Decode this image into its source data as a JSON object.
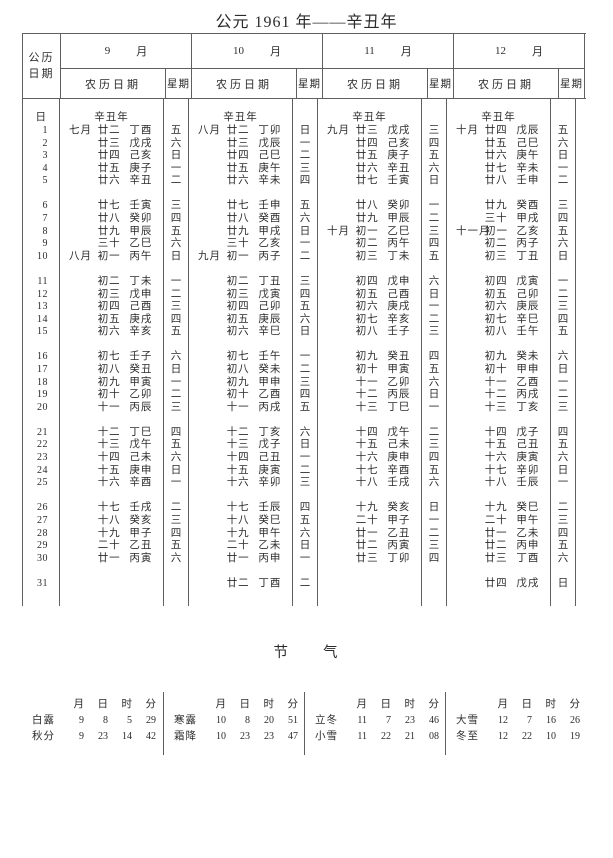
{
  "page_title": "公元 1961 年——辛丑年",
  "colors": {
    "background": "#ffffff",
    "text": "#2b2b2b",
    "line": "#5f5f5f"
  },
  "calendar": {
    "corner_line1": "公历",
    "corner_line2": "日期",
    "month_word": "月",
    "lunar_header": "农历日期",
    "week_header": "星期",
    "day_header": "日",
    "year_label": "辛丑年",
    "day_numbers": [
      1,
      2,
      3,
      4,
      5,
      6,
      7,
      8,
      9,
      10,
      11,
      12,
      13,
      14,
      15,
      16,
      17,
      18,
      19,
      20,
      21,
      22,
      23,
      24,
      25,
      26,
      27,
      28,
      29,
      30,
      31
    ],
    "months": [
      {
        "number": "9",
        "days": [
          {
            "m": "七月",
            "d": "廿二",
            "g": "丁酉",
            "w": "五"
          },
          {
            "m": "",
            "d": "廿三",
            "g": "戊戌",
            "w": "六"
          },
          {
            "m": "",
            "d": "廿四",
            "g": "己亥",
            "w": "日"
          },
          {
            "m": "",
            "d": "廿五",
            "g": "庚子",
            "w": "一"
          },
          {
            "m": "",
            "d": "廿六",
            "g": "辛丑",
            "w": "二"
          },
          {
            "m": "",
            "d": "廿七",
            "g": "壬寅",
            "w": "三"
          },
          {
            "m": "",
            "d": "廿八",
            "g": "癸卯",
            "w": "四"
          },
          {
            "m": "",
            "d": "廿九",
            "g": "甲辰",
            "w": "五"
          },
          {
            "m": "",
            "d": "三十",
            "g": "乙巳",
            "w": "六"
          },
          {
            "m": "八月",
            "d": "初一",
            "g": "丙午",
            "w": "日"
          },
          {
            "m": "",
            "d": "初二",
            "g": "丁未",
            "w": "一"
          },
          {
            "m": "",
            "d": "初三",
            "g": "戊申",
            "w": "二"
          },
          {
            "m": "",
            "d": "初四",
            "g": "己酉",
            "w": "三"
          },
          {
            "m": "",
            "d": "初五",
            "g": "庚戌",
            "w": "四"
          },
          {
            "m": "",
            "d": "初六",
            "g": "辛亥",
            "w": "五"
          },
          {
            "m": "",
            "d": "初七",
            "g": "壬子",
            "w": "六"
          },
          {
            "m": "",
            "d": "初八",
            "g": "癸丑",
            "w": "日"
          },
          {
            "m": "",
            "d": "初九",
            "g": "甲寅",
            "w": "一"
          },
          {
            "m": "",
            "d": "初十",
            "g": "乙卯",
            "w": "二"
          },
          {
            "m": "",
            "d": "十一",
            "g": "丙辰",
            "w": "三"
          },
          {
            "m": "",
            "d": "十二",
            "g": "丁巳",
            "w": "四"
          },
          {
            "m": "",
            "d": "十三",
            "g": "戊午",
            "w": "五"
          },
          {
            "m": "",
            "d": "十四",
            "g": "己未",
            "w": "六"
          },
          {
            "m": "",
            "d": "十五",
            "g": "庚申",
            "w": "日"
          },
          {
            "m": "",
            "d": "十六",
            "g": "辛酉",
            "w": "一"
          },
          {
            "m": "",
            "d": "十七",
            "g": "壬戌",
            "w": "二"
          },
          {
            "m": "",
            "d": "十八",
            "g": "癸亥",
            "w": "三"
          },
          {
            "m": "",
            "d": "十九",
            "g": "甲子",
            "w": "四"
          },
          {
            "m": "",
            "d": "二十",
            "g": "乙丑",
            "w": "五"
          },
          {
            "m": "",
            "d": "廿一",
            "g": "丙寅",
            "w": "六"
          },
          null
        ]
      },
      {
        "number": "10",
        "days": [
          {
            "m": "八月",
            "d": "廿二",
            "g": "丁卯",
            "w": "日"
          },
          {
            "m": "",
            "d": "廿三",
            "g": "戊辰",
            "w": "一"
          },
          {
            "m": "",
            "d": "廿四",
            "g": "己巳",
            "w": "二"
          },
          {
            "m": "",
            "d": "廿五",
            "g": "庚午",
            "w": "三"
          },
          {
            "m": "",
            "d": "廿六",
            "g": "辛未",
            "w": "四"
          },
          {
            "m": "",
            "d": "廿七",
            "g": "壬申",
            "w": "五"
          },
          {
            "m": "",
            "d": "廿八",
            "g": "癸酉",
            "w": "六"
          },
          {
            "m": "",
            "d": "廿九",
            "g": "甲戌",
            "w": "日"
          },
          {
            "m": "",
            "d": "三十",
            "g": "乙亥",
            "w": "一"
          },
          {
            "m": "九月",
            "d": "初一",
            "g": "丙子",
            "w": "二"
          },
          {
            "m": "",
            "d": "初二",
            "g": "丁丑",
            "w": "三"
          },
          {
            "m": "",
            "d": "初三",
            "g": "戊寅",
            "w": "四"
          },
          {
            "m": "",
            "d": "初四",
            "g": "己卯",
            "w": "五"
          },
          {
            "m": "",
            "d": "初五",
            "g": "庚辰",
            "w": "六"
          },
          {
            "m": "",
            "d": "初六",
            "g": "辛巳",
            "w": "日"
          },
          {
            "m": "",
            "d": "初七",
            "g": "壬午",
            "w": "一"
          },
          {
            "m": "",
            "d": "初八",
            "g": "癸未",
            "w": "二"
          },
          {
            "m": "",
            "d": "初九",
            "g": "甲申",
            "w": "三"
          },
          {
            "m": "",
            "d": "初十",
            "g": "乙酉",
            "w": "四"
          },
          {
            "m": "",
            "d": "十一",
            "g": "丙戌",
            "w": "五"
          },
          {
            "m": "",
            "d": "十二",
            "g": "丁亥",
            "w": "六"
          },
          {
            "m": "",
            "d": "十三",
            "g": "戊子",
            "w": "日"
          },
          {
            "m": "",
            "d": "十四",
            "g": "己丑",
            "w": "一"
          },
          {
            "m": "",
            "d": "十五",
            "g": "庚寅",
            "w": "二"
          },
          {
            "m": "",
            "d": "十六",
            "g": "辛卯",
            "w": "三"
          },
          {
            "m": "",
            "d": "十七",
            "g": "壬辰",
            "w": "四"
          },
          {
            "m": "",
            "d": "十八",
            "g": "癸巳",
            "w": "五"
          },
          {
            "m": "",
            "d": "十九",
            "g": "甲午",
            "w": "六"
          },
          {
            "m": "",
            "d": "二十",
            "g": "乙未",
            "w": "日"
          },
          {
            "m": "",
            "d": "廿一",
            "g": "丙申",
            "w": "一"
          },
          {
            "m": "",
            "d": "廿二",
            "g": "丁酉",
            "w": "二"
          }
        ]
      },
      {
        "number": "11",
        "days": [
          {
            "m": "九月",
            "d": "廿三",
            "g": "戊戌",
            "w": "三"
          },
          {
            "m": "",
            "d": "廿四",
            "g": "己亥",
            "w": "四"
          },
          {
            "m": "",
            "d": "廿五",
            "g": "庚子",
            "w": "五"
          },
          {
            "m": "",
            "d": "廿六",
            "g": "辛丑",
            "w": "六"
          },
          {
            "m": "",
            "d": "廿七",
            "g": "壬寅",
            "w": "日"
          },
          {
            "m": "",
            "d": "廿八",
            "g": "癸卯",
            "w": "一"
          },
          {
            "m": "",
            "d": "廿九",
            "g": "甲辰",
            "w": "二"
          },
          {
            "m": "十月",
            "d": "初一",
            "g": "乙巳",
            "w": "三"
          },
          {
            "m": "",
            "d": "初二",
            "g": "丙午",
            "w": "四"
          },
          {
            "m": "",
            "d": "初三",
            "g": "丁未",
            "w": "五"
          },
          {
            "m": "",
            "d": "初四",
            "g": "戊申",
            "w": "六"
          },
          {
            "m": "",
            "d": "初五",
            "g": "己酉",
            "w": "日"
          },
          {
            "m": "",
            "d": "初六",
            "g": "庚戌",
            "w": "一"
          },
          {
            "m": "",
            "d": "初七",
            "g": "辛亥",
            "w": "二"
          },
          {
            "m": "",
            "d": "初八",
            "g": "壬子",
            "w": "三"
          },
          {
            "m": "",
            "d": "初九",
            "g": "癸丑",
            "w": "四"
          },
          {
            "m": "",
            "d": "初十",
            "g": "甲寅",
            "w": "五"
          },
          {
            "m": "",
            "d": "十一",
            "g": "乙卯",
            "w": "六"
          },
          {
            "m": "",
            "d": "十二",
            "g": "丙辰",
            "w": "日"
          },
          {
            "m": "",
            "d": "十三",
            "g": "丁巳",
            "w": "一"
          },
          {
            "m": "",
            "d": "十四",
            "g": "戊午",
            "w": "二"
          },
          {
            "m": "",
            "d": "十五",
            "g": "己未",
            "w": "三"
          },
          {
            "m": "",
            "d": "十六",
            "g": "庚申",
            "w": "四"
          },
          {
            "m": "",
            "d": "十七",
            "g": "辛酉",
            "w": "五"
          },
          {
            "m": "",
            "d": "十八",
            "g": "壬戌",
            "w": "六"
          },
          {
            "m": "",
            "d": "十九",
            "g": "癸亥",
            "w": "日"
          },
          {
            "m": "",
            "d": "二十",
            "g": "甲子",
            "w": "一"
          },
          {
            "m": "",
            "d": "廿一",
            "g": "乙丑",
            "w": "二"
          },
          {
            "m": "",
            "d": "廿二",
            "g": "丙寅",
            "w": "三"
          },
          {
            "m": "",
            "d": "廿三",
            "g": "丁卯",
            "w": "四"
          },
          null
        ]
      },
      {
        "number": "12",
        "days": [
          {
            "m": "十月",
            "d": "廿四",
            "g": "戊辰",
            "w": "五"
          },
          {
            "m": "",
            "d": "廿五",
            "g": "己巳",
            "w": "六"
          },
          {
            "m": "",
            "d": "廿六",
            "g": "庚午",
            "w": "日"
          },
          {
            "m": "",
            "d": "廿七",
            "g": "辛未",
            "w": "一"
          },
          {
            "m": "",
            "d": "廿八",
            "g": "壬申",
            "w": "二"
          },
          {
            "m": "",
            "d": "廿九",
            "g": "癸酉",
            "w": "三"
          },
          {
            "m": "",
            "d": "三十",
            "g": "甲戌",
            "w": "四"
          },
          {
            "m": "十一月",
            "d": "初一",
            "g": "乙亥",
            "w": "五"
          },
          {
            "m": "",
            "d": "初二",
            "g": "丙子",
            "w": "六"
          },
          {
            "m": "",
            "d": "初三",
            "g": "丁丑",
            "w": "日"
          },
          {
            "m": "",
            "d": "初四",
            "g": "戊寅",
            "w": "一"
          },
          {
            "m": "",
            "d": "初五",
            "g": "己卯",
            "w": "二"
          },
          {
            "m": "",
            "d": "初六",
            "g": "庚辰",
            "w": "三"
          },
          {
            "m": "",
            "d": "初七",
            "g": "辛巳",
            "w": "四"
          },
          {
            "m": "",
            "d": "初八",
            "g": "壬午",
            "w": "五"
          },
          {
            "m": "",
            "d": "初九",
            "g": "癸未",
            "w": "六"
          },
          {
            "m": "",
            "d": "初十",
            "g": "甲申",
            "w": "日"
          },
          {
            "m": "",
            "d": "十一",
            "g": "乙酉",
            "w": "一"
          },
          {
            "m": "",
            "d": "十二",
            "g": "丙戌",
            "w": "二"
          },
          {
            "m": "",
            "d": "十三",
            "g": "丁亥",
            "w": "三"
          },
          {
            "m": "",
            "d": "十四",
            "g": "戊子",
            "w": "四"
          },
          {
            "m": "",
            "d": "十五",
            "g": "己丑",
            "w": "五"
          },
          {
            "m": "",
            "d": "十六",
            "g": "庚寅",
            "w": "六"
          },
          {
            "m": "",
            "d": "十七",
            "g": "辛卯",
            "w": "日"
          },
          {
            "m": "",
            "d": "十八",
            "g": "壬辰",
            "w": "一"
          },
          {
            "m": "",
            "d": "十九",
            "g": "癸巳",
            "w": "二"
          },
          {
            "m": "",
            "d": "二十",
            "g": "甲午",
            "w": "三"
          },
          {
            "m": "",
            "d": "廿一",
            "g": "乙未",
            "w": "四"
          },
          {
            "m": "",
            "d": "廿二",
            "g": "丙申",
            "w": "五"
          },
          {
            "m": "",
            "d": "廿三",
            "g": "丁酉",
            "w": "六"
          },
          {
            "m": "",
            "d": "廿四",
            "g": "戊戌",
            "w": "日"
          }
        ]
      }
    ]
  },
  "solar_terms": {
    "title": "节　　气",
    "col_headers": [
      "月",
      "日",
      "时",
      "分"
    ],
    "groups": [
      [
        {
          "name": "白露",
          "values": [
            "9",
            "8",
            "5",
            "29"
          ]
        },
        {
          "name": "秋分",
          "values": [
            "9",
            "23",
            "14",
            "42"
          ]
        }
      ],
      [
        {
          "name": "寒露",
          "values": [
            "10",
            "8",
            "20",
            "51"
          ]
        },
        {
          "name": "霜降",
          "values": [
            "10",
            "23",
            "23",
            "47"
          ]
        }
      ],
      [
        {
          "name": "立冬",
          "values": [
            "11",
            "7",
            "23",
            "46"
          ]
        },
        {
          "name": "小雪",
          "values": [
            "11",
            "22",
            "21",
            "08"
          ]
        }
      ],
      [
        {
          "name": "大雪",
          "values": [
            "12",
            "7",
            "16",
            "26"
          ]
        },
        {
          "name": "冬至",
          "values": [
            "12",
            "22",
            "10",
            "19"
          ]
        }
      ]
    ]
  }
}
